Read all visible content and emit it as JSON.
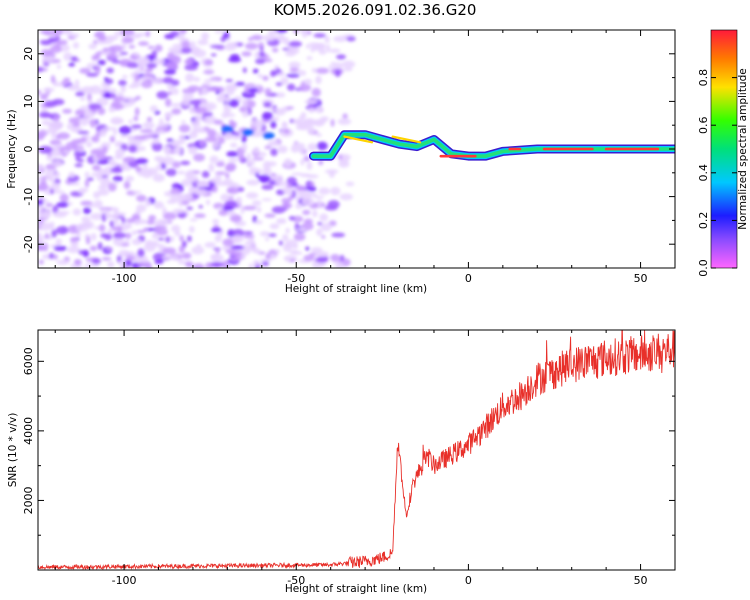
{
  "title": "KOM5.2026.091.02.36.G20",
  "colors": {
    "snr_line": "#e8302a",
    "ridge": [
      "#3a1bd0",
      "#00c8ff",
      "#22e07a",
      "#ffd400",
      "#ff3838"
    ],
    "noise": [
      "#e8d4ff",
      "#c89bff",
      "#9b5bff",
      "#7a2cff"
    ]
  },
  "chart_data": [
    {
      "type": "heatmap",
      "name": "spectrogram",
      "xlabel": "Height of straight line (km)",
      "ylabel": "Frequency (Hz)",
      "xlim": [
        -125,
        60
      ],
      "ylim": [
        -25,
        25
      ],
      "xticks": [
        -100,
        -50,
        0,
        50
      ],
      "yticks": [
        -20,
        -10,
        0,
        10,
        20
      ],
      "ridge_points": [
        [
          -45,
          -1.5
        ],
        [
          -40,
          -1.5
        ],
        [
          -36,
          3.0
        ],
        [
          -30,
          3.0
        ],
        [
          -25,
          2.0
        ],
        [
          -20,
          1.0
        ],
        [
          -15,
          0.5
        ],
        [
          -10,
          2.0
        ],
        [
          -5,
          -1.0
        ],
        [
          0,
          -1.5
        ],
        [
          5,
          -1.5
        ],
        [
          10,
          -0.5
        ],
        [
          20,
          0.0
        ],
        [
          40,
          0.0
        ],
        [
          60,
          0.0
        ]
      ],
      "colorbar": {
        "label": "Normalized spectral amplitude",
        "range": [
          0,
          1
        ],
        "ticks": [
          "0.0",
          "0.2",
          "0.4",
          "0.6",
          "0.8"
        ]
      }
    },
    {
      "type": "line",
      "name": "snr",
      "xlabel": "Height of straight line (km)",
      "ylabel": "SNR (10 * v/v)",
      "xlim": [
        -125,
        60
      ],
      "ylim": [
        0,
        6900
      ],
      "xticks": [
        -100,
        -50,
        0,
        50
      ],
      "yticks": [
        2000,
        4000,
        6000
      ],
      "trend": [
        [
          -125,
          80
        ],
        [
          -60,
          130
        ],
        [
          -40,
          150
        ],
        [
          -30,
          250
        ],
        [
          -25,
          350
        ],
        [
          -22,
          500
        ],
        [
          -20.5,
          3800
        ],
        [
          -19,
          2300
        ],
        [
          -18,
          1600
        ],
        [
          -16,
          2500
        ],
        [
          -12,
          3300
        ],
        [
          -10,
          3000
        ],
        [
          -5,
          3300
        ],
        [
          0,
          3600
        ],
        [
          5,
          4100
        ],
        [
          10,
          4700
        ],
        [
          15,
          5000
        ],
        [
          20,
          5500
        ],
        [
          30,
          5900
        ],
        [
          40,
          6100
        ],
        [
          50,
          6200
        ],
        [
          60,
          6350
        ]
      ]
    }
  ]
}
